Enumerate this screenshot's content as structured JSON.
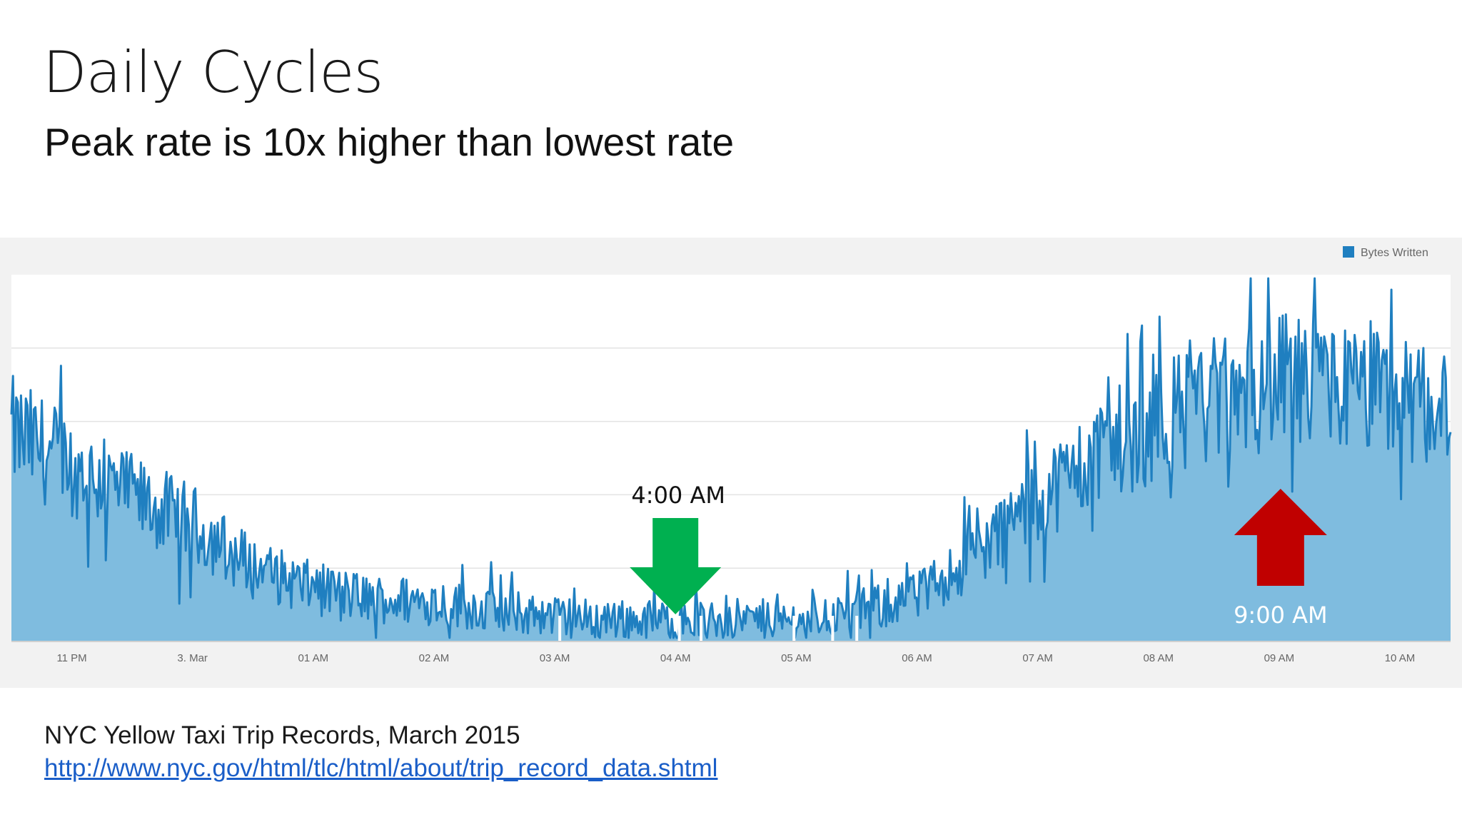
{
  "slide": {
    "title": "Daily Cycles",
    "subtitle": "Peak rate is 10x higher than lowest rate",
    "source_text": "NYC Yellow Taxi Trip Records, March 2015",
    "source_link": "http://www.nyc.gov/html/tlc/html/about/trip_record_data.shtml"
  },
  "chart_data": {
    "type": "area",
    "title": "",
    "xlabel": "",
    "ylabel": "",
    "legend": {
      "label": "Bytes Written",
      "placement": "top-right"
    },
    "grid": true,
    "x_ticks": [
      "11 PM",
      "3. Mar",
      "01 AM",
      "02 AM",
      "03 AM",
      "04 AM",
      "05 AM",
      "06 AM",
      "07 AM",
      "08 AM",
      "09 AM",
      "10 AM"
    ],
    "x_range_hours": [
      -1.5,
      10.42
    ],
    "y_range": [
      0,
      5
    ],
    "hourly_trend": [
      {
        "hour": -1.5,
        "value": 2.85
      },
      {
        "hour": -1.0,
        "value": 2.4
      },
      {
        "hour": -0.5,
        "value": 1.95
      },
      {
        "hour": 0.0,
        "value": 1.6
      },
      {
        "hour": 0.5,
        "value": 1.0
      },
      {
        "hour": 1.0,
        "value": 0.72
      },
      {
        "hour": 1.5,
        "value": 0.58
      },
      {
        "hour": 2.0,
        "value": 0.55
      },
      {
        "hour": 2.5,
        "value": 0.42
      },
      {
        "hour": 3.0,
        "value": 0.34
      },
      {
        "hour": 3.5,
        "value": 0.3
      },
      {
        "hour": 4.0,
        "value": 0.28
      },
      {
        "hour": 4.5,
        "value": 0.3
      },
      {
        "hour": 5.0,
        "value": 0.3
      },
      {
        "hour": 5.5,
        "value": 0.4
      },
      {
        "hour": 6.0,
        "value": 0.6
      },
      {
        "hour": 6.5,
        "value": 1.2
      },
      {
        "hour": 7.0,
        "value": 1.95
      },
      {
        "hour": 7.5,
        "value": 2.55
      },
      {
        "hour": 8.0,
        "value": 3.05
      },
      {
        "hour": 8.5,
        "value": 3.3
      },
      {
        "hour": 9.0,
        "value": 3.55
      },
      {
        "hour": 9.5,
        "value": 3.45
      },
      {
        "hour": 10.0,
        "value": 3.3
      },
      {
        "hour": 10.42,
        "value": 3.15
      }
    ],
    "annotations": [
      {
        "label": "4:00 AM",
        "hour": 4.0,
        "marker": "down-arrow",
        "color": "#00b050"
      },
      {
        "label": "9:00 AM",
        "hour": 9.0,
        "marker": "up-arrow",
        "color": "#c00000"
      }
    ],
    "colors": {
      "line": "#1f7fc0",
      "fill": "#7fbcdf",
      "legend": "#1f7fc0"
    }
  }
}
